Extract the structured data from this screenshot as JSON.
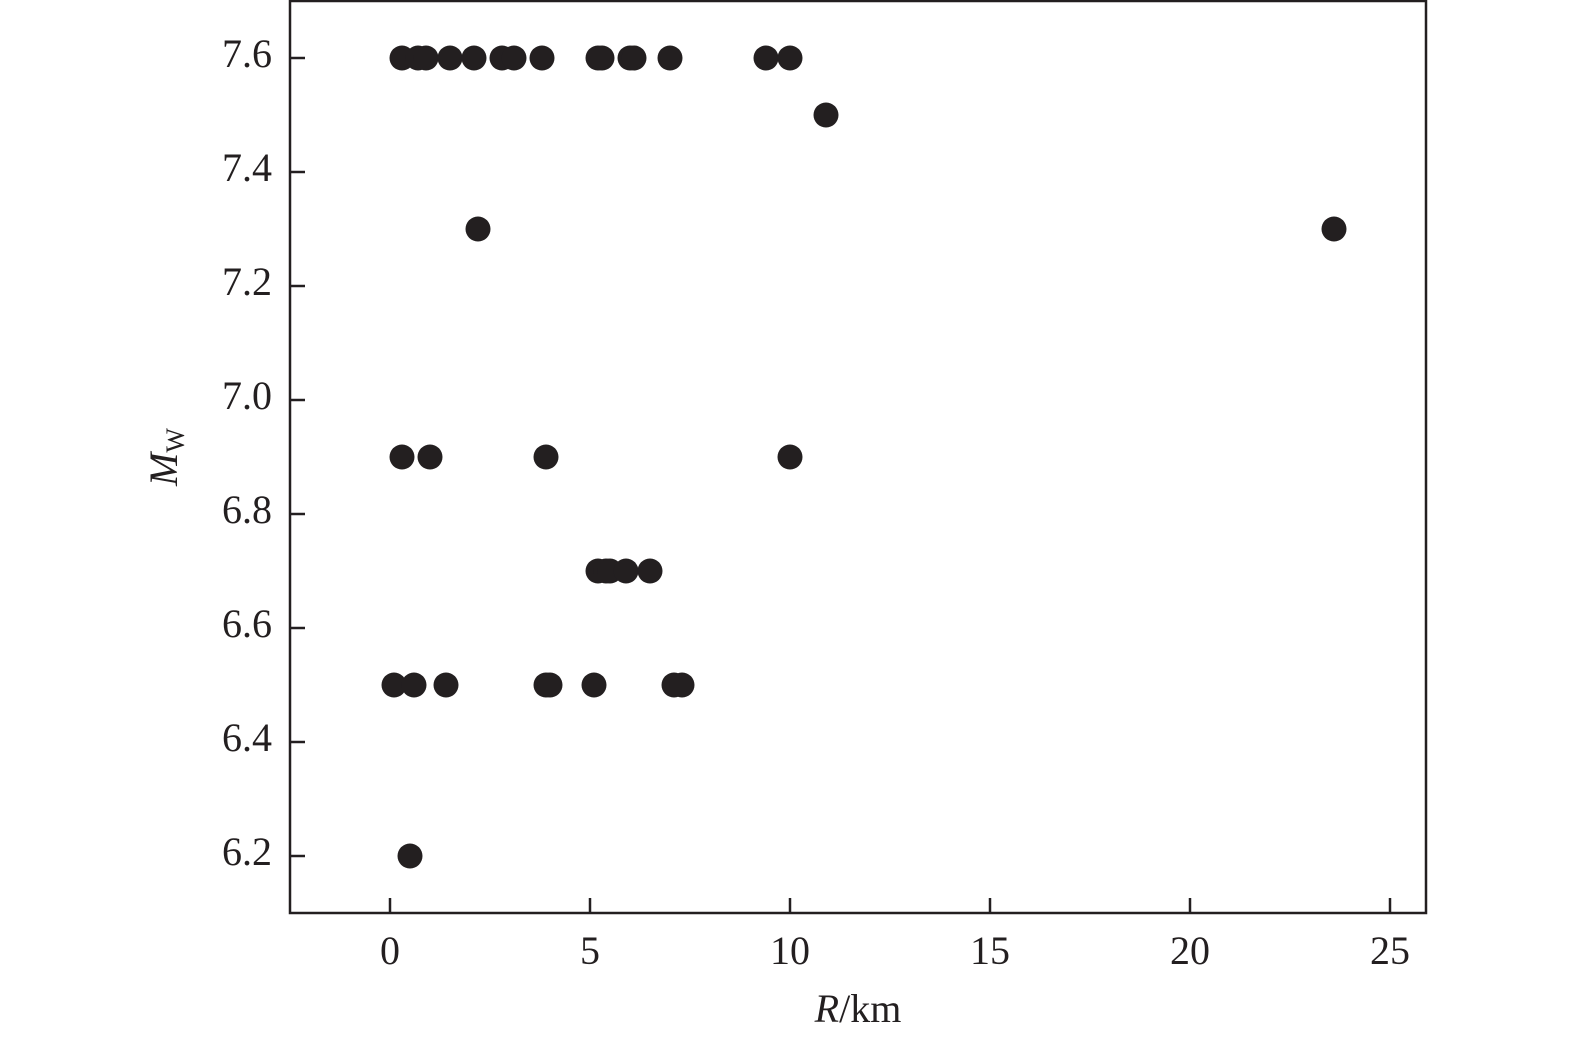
{
  "chart_data": {
    "type": "scatter",
    "x_label": {
      "italic": "R",
      "rest": "/km"
    },
    "y_label": {
      "main": "M",
      "sub": "W"
    },
    "series": [
      {
        "color": "#231f20",
        "x": [
          0.3,
          0.7,
          0.9,
          1.5,
          2.1,
          2.8,
          3.1,
          3.8,
          5.2,
          5.3,
          6.0,
          6.1,
          7.0,
          9.4,
          10.0,
          10.9,
          2.2,
          23.6,
          0.3,
          1.0,
          3.9,
          10.0,
          5.2,
          5.4,
          5.5,
          5.9,
          6.5,
          0.1,
          0.6,
          1.4,
          3.9,
          4.0,
          5.1,
          7.1,
          7.3,
          0.5
        ],
        "values": [
          7.6,
          7.6,
          7.6,
          7.6,
          7.6,
          7.6,
          7.6,
          7.6,
          7.6,
          7.6,
          7.6,
          7.6,
          7.6,
          7.6,
          7.6,
          7.5,
          7.3,
          7.3,
          6.9,
          6.9,
          6.9,
          6.9,
          6.7,
          6.7,
          6.7,
          6.7,
          6.7,
          6.5,
          6.5,
          6.5,
          6.5,
          6.5,
          6.5,
          6.5,
          6.5,
          6.2
        ]
      }
    ],
    "xlim": [
      -2.5,
      25.9
    ],
    "ylim": [
      6.1,
      7.7
    ],
    "xticks": [
      0,
      5,
      10,
      15,
      20,
      25
    ],
    "yticks": [
      6.2,
      6.4,
      6.6,
      6.8,
      {
        "value": 7.0,
        "label": "7.0"
      },
      7.2,
      7.4,
      7.6
    ]
  }
}
